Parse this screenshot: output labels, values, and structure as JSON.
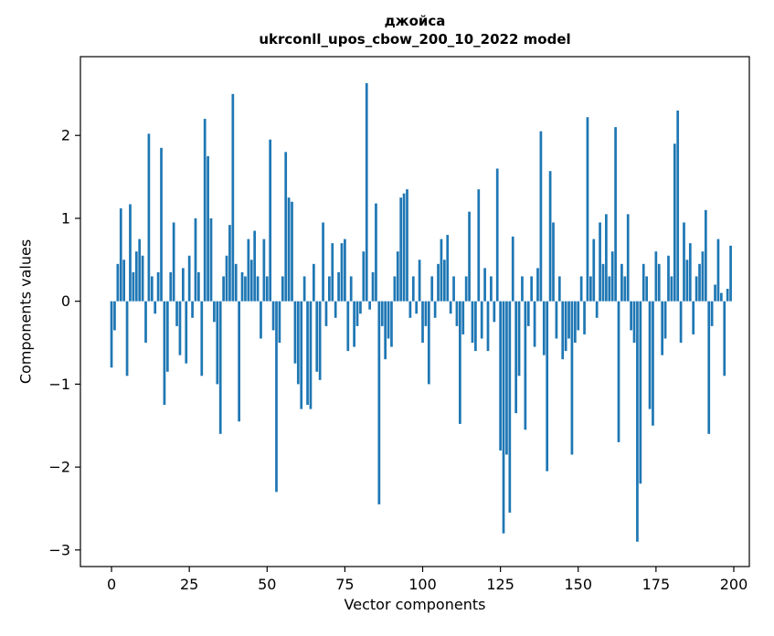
{
  "figure": {
    "background": "#ffffff"
  },
  "chart_data": {
    "type": "bar",
    "title_line1": "джойса",
    "title_line2": "ukrconll_upos_cbow_200_10_2022 model",
    "xlabel": "Vector components",
    "ylabel": "Components values",
    "bar_color": "#1f77b4",
    "axis_color": "#000000",
    "xlim": [
      -10,
      205
    ],
    "ylim": [
      -3.2,
      2.95
    ],
    "x_ticks": [
      0,
      25,
      50,
      75,
      100,
      125,
      150,
      175,
      200
    ],
    "y_ticks": [
      -3,
      -2,
      -1,
      0,
      1,
      2
    ],
    "bar_width": 0.8,
    "grid": false,
    "legend": null,
    "values": [
      -0.8,
      -0.35,
      0.45,
      1.12,
      0.5,
      -0.9,
      1.17,
      0.35,
      0.6,
      0.75,
      0.55,
      -0.5,
      2.02,
      0.3,
      -0.15,
      0.35,
      1.85,
      -1.25,
      -0.85,
      0.35,
      0.95,
      -0.3,
      -0.65,
      0.4,
      -0.75,
      0.55,
      -0.2,
      1.0,
      0.35,
      -0.9,
      2.2,
      1.75,
      1.0,
      -0.25,
      -1.0,
      -1.6,
      0.3,
      0.55,
      0.92,
      2.5,
      0.45,
      -1.45,
      0.35,
      0.3,
      0.75,
      0.5,
      0.85,
      0.3,
      -0.45,
      0.75,
      0.3,
      1.95,
      -0.35,
      -2.3,
      -0.5,
      0.3,
      1.8,
      1.25,
      1.2,
      -0.75,
      -1.0,
      -1.3,
      0.3,
      -1.25,
      -1.3,
      0.45,
      -0.85,
      -0.95,
      0.95,
      -0.3,
      0.3,
      0.7,
      -0.2,
      0.35,
      0.7,
      0.75,
      -0.6,
      0.3,
      -0.55,
      -0.3,
      -0.15,
      0.6,
      2.63,
      -0.1,
      0.35,
      1.18,
      -2.45,
      -0.3,
      -0.7,
      -0.45,
      -0.55,
      0.3,
      0.6,
      1.25,
      1.3,
      1.35,
      -0.2,
      0.3,
      -0.15,
      0.5,
      -0.5,
      -0.3,
      -1.0,
      0.3,
      -0.2,
      0.45,
      0.75,
      0.5,
      0.8,
      -0.15,
      0.3,
      -0.3,
      -1.48,
      -0.4,
      0.3,
      1.08,
      -0.5,
      -0.6,
      1.35,
      -0.45,
      0.4,
      -0.6,
      0.3,
      -0.25,
      1.6,
      -1.8,
      -2.8,
      -1.85,
      -2.55,
      0.78,
      -1.35,
      -0.9,
      0.3,
      -1.55,
      -0.3,
      0.3,
      -0.55,
      0.4,
      2.05,
      -0.65,
      -2.05,
      1.57,
      0.95,
      -0.45,
      0.3,
      -0.7,
      -0.6,
      -0.45,
      -1.85,
      -0.5,
      -0.35,
      0.3,
      -0.4,
      2.22,
      0.3,
      0.75,
      -0.2,
      0.95,
      0.45,
      1.05,
      0.3,
      0.6,
      2.1,
      -1.7,
      0.45,
      0.3,
      1.05,
      -0.35,
      -0.5,
      -2.9,
      -2.2,
      0.45,
      0.3,
      -1.3,
      -1.5,
      0.6,
      0.45,
      -0.65,
      -0.45,
      0.55,
      0.3,
      1.9,
      2.3,
      -0.5,
      0.95,
      0.5,
      0.7,
      -0.4,
      0.3,
      0.45,
      0.6,
      1.1,
      -1.6,
      -0.3,
      0.2,
      0.75,
      0.1,
      -0.9,
      0.15,
      0.67
    ]
  }
}
